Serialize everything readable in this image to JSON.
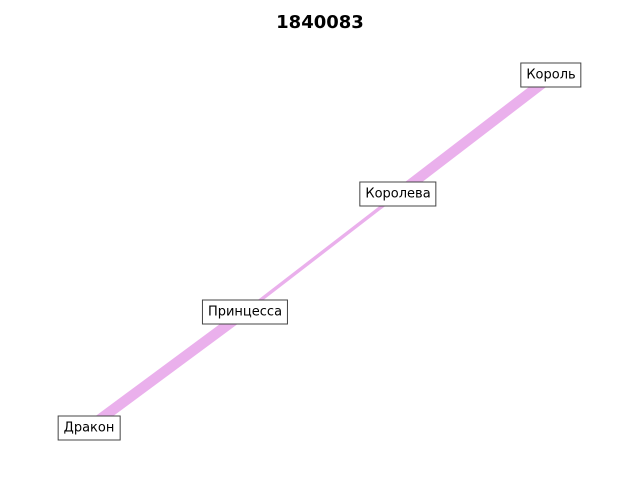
{
  "title": "1840083",
  "colors": {
    "edge": "#eab0ec",
    "node_border": "#444444",
    "background": "#ffffff"
  },
  "nodes": [
    {
      "id": "korol",
      "label": "Король"
    },
    {
      "id": "koroleva",
      "label": "Королева"
    },
    {
      "id": "printsessa",
      "label": "Принцесса"
    },
    {
      "id": "drakon",
      "label": "Дракон"
    }
  ],
  "edges": [
    {
      "from": "korol",
      "to": "koroleva",
      "weight": 3
    },
    {
      "from": "koroleva",
      "to": "printsessa",
      "weight": 1
    },
    {
      "from": "printsessa",
      "to": "drakon",
      "weight": 3
    }
  ]
}
